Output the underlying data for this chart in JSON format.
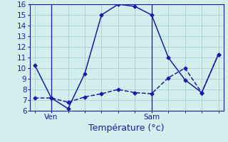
{
  "background_color": "#d4eeee",
  "grid_color": "#aad4d4",
  "line_color": "#1a1aaa",
  "x_values_line1": [
    0,
    1,
    2,
    3,
    4,
    5,
    6,
    7,
    8,
    9,
    10,
    11
  ],
  "y_values_line1": [
    10.3,
    7.2,
    6.2,
    9.5,
    15.0,
    16.0,
    15.8,
    15.0,
    11.0,
    8.9,
    7.7,
    11.3
  ],
  "x_values_line2": [
    0,
    1,
    2,
    3,
    4,
    5,
    6,
    7,
    8,
    9,
    10,
    11
  ],
  "y_values_line2": [
    7.2,
    7.2,
    6.8,
    7.3,
    7.6,
    8.0,
    7.7,
    7.6,
    9.1,
    10.0,
    7.7,
    11.3
  ],
  "ven_x": 1.0,
  "sam_x": 7.0,
  "ylim_min": 6,
  "ylim_max": 16,
  "xlim_min": -0.3,
  "xlim_max": 11.3,
  "xlabel": "Température (°c)",
  "xlabel_fontsize": 9,
  "tick_fontsize": 7.5,
  "yticks": [
    6,
    7,
    8,
    9,
    10,
    11,
    12,
    13,
    14,
    15,
    16
  ]
}
